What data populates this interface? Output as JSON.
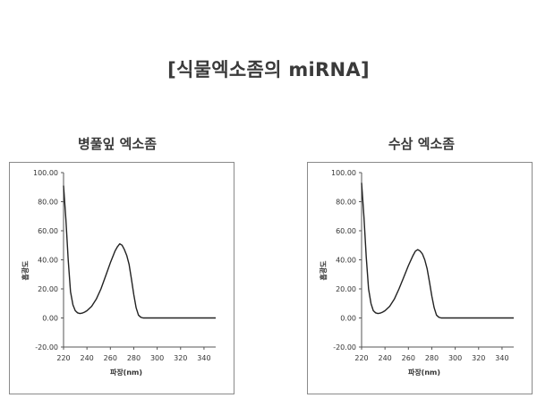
{
  "title": "[식물엑소좀의 miRNA]",
  "chart_data": [
    {
      "type": "line",
      "title": "병풀잎 엑소좀",
      "xlabel": "파장(nm)",
      "ylabel": "흡광도",
      "xlim": [
        220,
        350
      ],
      "ylim": [
        -20,
        100
      ],
      "xticks": [
        "220",
        "240",
        "260",
        "280",
        "300",
        "320",
        "340"
      ],
      "yticks": [
        "-20.00",
        "0.00",
        "20.00",
        "40.00",
        "60.00",
        "80.00",
        "100.00"
      ],
      "grid": false,
      "series": [
        {
          "x": [
            220,
            222,
            224,
            226,
            228,
            230,
            232,
            234,
            236,
            238,
            240,
            244,
            248,
            252,
            256,
            260,
            264,
            266,
            268,
            270,
            272,
            274,
            276,
            278,
            280,
            282,
            284,
            286,
            288,
            290,
            295,
            300,
            310,
            320,
            330,
            340,
            350
          ],
          "y": [
            91,
            68,
            40,
            18,
            9,
            5,
            3.5,
            3,
            3.3,
            4,
            5,
            8,
            13,
            20,
            29,
            38,
            46,
            49,
            51,
            50,
            47,
            43,
            37,
            27,
            16,
            7,
            2,
            0.5,
            0,
            0,
            0,
            0,
            0,
            0,
            0,
            0,
            0
          ]
        }
      ]
    },
    {
      "type": "line",
      "title": "수삼 엑소좀",
      "xlabel": "파장(nm)",
      "ylabel": "흡광도",
      "xlim": [
        220,
        350
      ],
      "ylim": [
        -20,
        100
      ],
      "xticks": [
        "220",
        "240",
        "260",
        "280",
        "300",
        "320",
        "340"
      ],
      "yticks": [
        "-20.00",
        "0.00",
        "20.00",
        "40.00",
        "60.00",
        "80.00",
        "100.00"
      ],
      "grid": false,
      "series": [
        {
          "x": [
            220,
            222,
            224,
            226,
            228,
            230,
            232,
            234,
            236,
            238,
            240,
            244,
            248,
            252,
            256,
            260,
            264,
            266,
            268,
            270,
            272,
            274,
            276,
            278,
            280,
            282,
            284,
            286,
            288,
            290,
            295,
            300,
            310,
            320,
            330,
            340,
            350
          ],
          "y": [
            93,
            70,
            42,
            20,
            10,
            5,
            3.5,
            3,
            3.3,
            4,
            5,
            8,
            13,
            20,
            28,
            36,
            43,
            46,
            47,
            46,
            44,
            40,
            34,
            25,
            15,
            7,
            2,
            0.5,
            0,
            0,
            0,
            0,
            0,
            0,
            0,
            0,
            0
          ]
        }
      ]
    }
  ]
}
